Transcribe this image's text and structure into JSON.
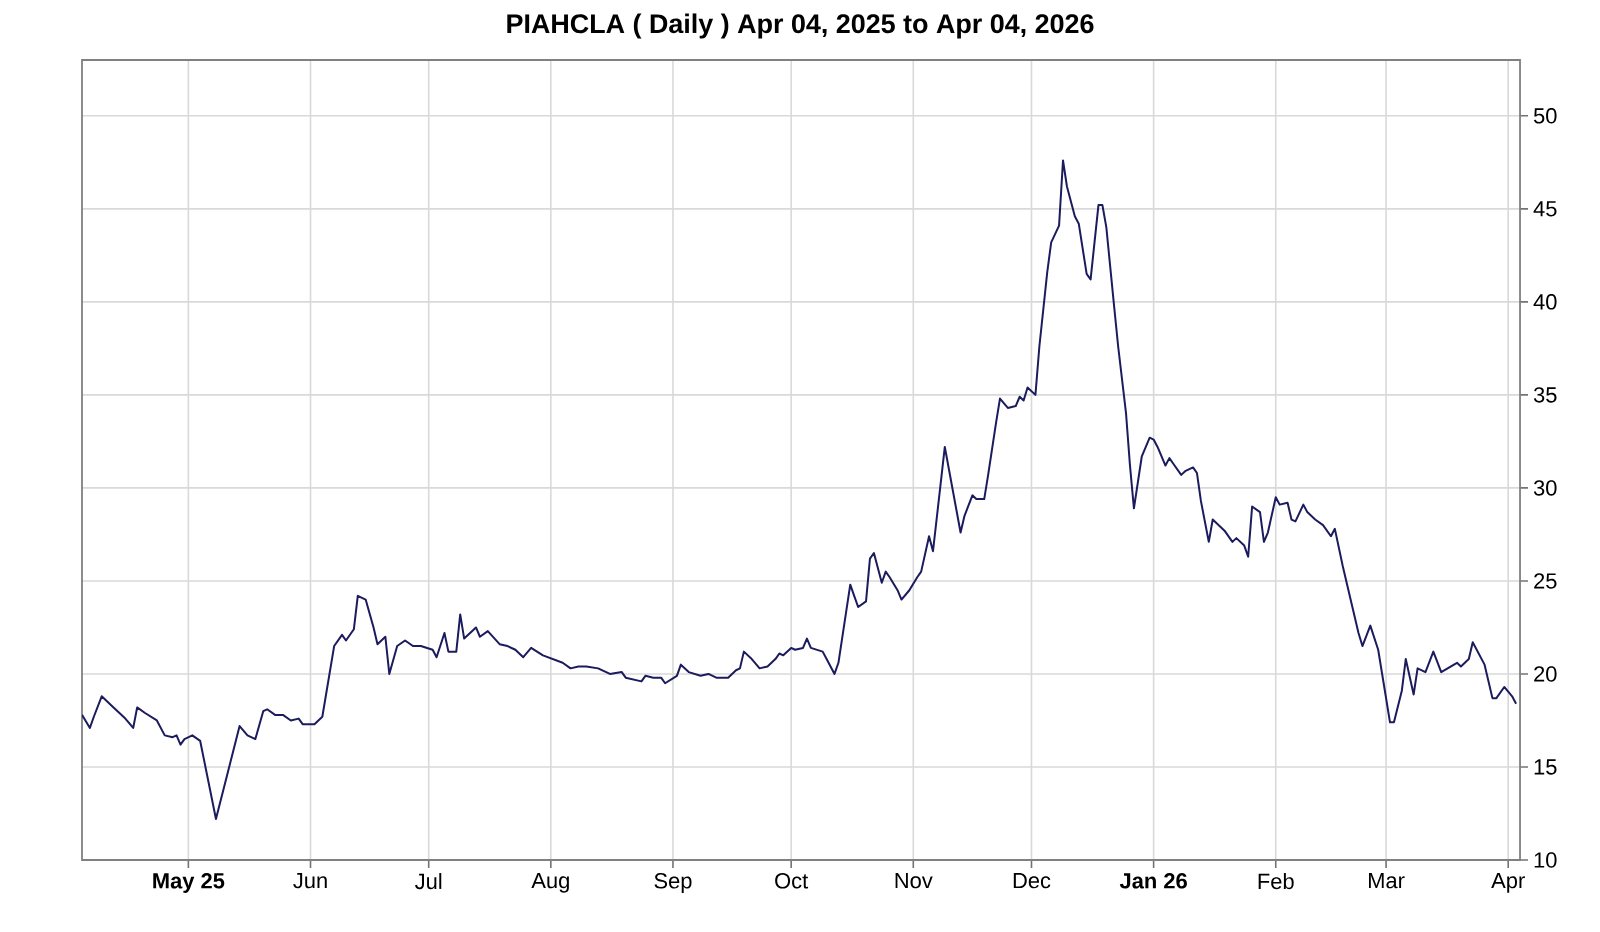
{
  "chart_data": {
    "type": "line",
    "title": "PIAHCLA ( Daily ) Apr 04, 2025 to Apr 04, 2026",
    "xlim": [
      "2025-04-04",
      "2026-04-04"
    ],
    "ylim": [
      10,
      53
    ],
    "xticks": [
      {
        "value": "2025-05-01",
        "label": "May 25"
      },
      {
        "value": "2025-06-01",
        "label": "Jun"
      },
      {
        "value": "2025-07-01",
        "label": "Jul"
      },
      {
        "value": "2025-08-01",
        "label": "Aug"
      },
      {
        "value": "2025-09-01",
        "label": "Sep"
      },
      {
        "value": "2025-10-01",
        "label": "Oct"
      },
      {
        "value": "2025-11-01",
        "label": "Nov"
      },
      {
        "value": "2025-12-01",
        "label": "Dec"
      },
      {
        "value": "2026-01-01",
        "label": "Jan 26"
      },
      {
        "value": "2026-02-01",
        "label": "Feb"
      },
      {
        "value": "2026-03-01",
        "label": "Mar"
      },
      {
        "value": "2026-04-01",
        "label": "Apr"
      }
    ],
    "yticks": [
      10,
      15,
      20,
      25,
      30,
      35,
      40,
      45,
      50
    ],
    "grid": true,
    "color": "#1b1b5e",
    "x": [
      "2025-04-04",
      "2025-04-06",
      "2025-04-07",
      "2025-04-09",
      "2025-04-10",
      "2025-04-12",
      "2025-04-15",
      "2025-04-17",
      "2025-04-18",
      "2025-04-20",
      "2025-04-23",
      "2025-04-25",
      "2025-04-27",
      "2025-04-28",
      "2025-04-29",
      "2025-04-30",
      "2025-05-02",
      "2025-05-04",
      "2025-05-08",
      "2025-05-14",
      "2025-05-16",
      "2025-05-18",
      "2025-05-20",
      "2025-05-21",
      "2025-05-23",
      "2025-05-25",
      "2025-05-27",
      "2025-05-29",
      "2025-05-30",
      "2025-06-02",
      "2025-06-04",
      "2025-06-07",
      "2025-06-09",
      "2025-06-10",
      "2025-06-12",
      "2025-06-13",
      "2025-06-15",
      "2025-06-17",
      "2025-06-18",
      "2025-06-20",
      "2025-06-21",
      "2025-06-23",
      "2025-06-25",
      "2025-06-27",
      "2025-06-29",
      "2025-07-02",
      "2025-07-03",
      "2025-07-05",
      "2025-07-06",
      "2025-07-08",
      "2025-07-09",
      "2025-07-10",
      "2025-07-13",
      "2025-07-14",
      "2025-07-16",
      "2025-07-19",
      "2025-07-21",
      "2025-07-23",
      "2025-07-25",
      "2025-07-27",
      "2025-07-30",
      "2025-08-04",
      "2025-08-06",
      "2025-08-08",
      "2025-08-10",
      "2025-08-13",
      "2025-08-16",
      "2025-08-19",
      "2025-08-20",
      "2025-08-24",
      "2025-08-25",
      "2025-08-27",
      "2025-08-29",
      "2025-08-30",
      "2025-09-02",
      "2025-09-03",
      "2025-09-05",
      "2025-09-08",
      "2025-09-10",
      "2025-09-12",
      "2025-09-15",
      "2025-09-17",
      "2025-09-18",
      "2025-09-19",
      "2025-09-21",
      "2025-09-23",
      "2025-09-25",
      "2025-09-27",
      "2025-09-28",
      "2025-09-29",
      "2025-10-01",
      "2025-10-02",
      "2025-10-04",
      "2025-10-05",
      "2025-10-06",
      "2025-10-09",
      "2025-10-10",
      "2025-10-12",
      "2025-10-13",
      "2025-10-16",
      "2025-10-17",
      "2025-10-18",
      "2025-10-20",
      "2025-10-21",
      "2025-10-22",
      "2025-10-24",
      "2025-10-25",
      "2025-10-26",
      "2025-10-28",
      "2025-10-29",
      "2025-10-31",
      "2025-11-02",
      "2025-11-03",
      "2025-11-05",
      "2025-11-06",
      "2025-11-09",
      "2025-11-13",
      "2025-11-14",
      "2025-11-16",
      "2025-11-17",
      "2025-11-19",
      "2025-11-20",
      "2025-11-22",
      "2025-11-23",
      "2025-11-25",
      "2025-11-27",
      "2025-11-28",
      "2025-11-29",
      "2025-11-30",
      "2025-12-02",
      "2025-12-03",
      "2025-12-05",
      "2025-12-06",
      "2025-12-08",
      "2025-12-09",
      "2025-12-10",
      "2025-12-12",
      "2025-12-13",
      "2025-12-15",
      "2025-12-16",
      "2025-12-18",
      "2025-12-19",
      "2025-12-20",
      "2025-12-22",
      "2025-12-23",
      "2025-12-25",
      "2025-12-26",
      "2025-12-27",
      "2025-12-29",
      "2025-12-31",
      "2026-01-01",
      "2026-01-02",
      "2026-01-04",
      "2026-01-05",
      "2026-01-06",
      "2026-01-08",
      "2026-01-09",
      "2026-01-11",
      "2026-01-12",
      "2026-01-13",
      "2026-01-15",
      "2026-01-16",
      "2026-01-18",
      "2026-01-19",
      "2026-01-21",
      "2026-01-22",
      "2026-01-24",
      "2026-01-25",
      "2026-01-26",
      "2026-01-28",
      "2026-01-29",
      "2026-01-30",
      "2026-02-01",
      "2026-02-02",
      "2026-02-04",
      "2026-02-05",
      "2026-02-06",
      "2026-02-08",
      "2026-02-09",
      "2026-02-11",
      "2026-02-13",
      "2026-02-15",
      "2026-02-16",
      "2026-02-18",
      "2026-02-20",
      "2026-02-22",
      "2026-02-23",
      "2026-02-25",
      "2026-02-27",
      "2026-03-02",
      "2026-03-03",
      "2026-03-05",
      "2026-03-06",
      "2026-03-08",
      "2026-03-09",
      "2026-03-11",
      "2026-03-13",
      "2026-03-15",
      "2026-03-19",
      "2026-03-20",
      "2026-03-22",
      "2026-03-23",
      "2026-03-26",
      "2026-03-28",
      "2026-03-29",
      "2026-03-31",
      "2026-04-02",
      "2026-04-03"
    ],
    "values": [
      17.8,
      17.1,
      17.7,
      18.8,
      18.6,
      18.2,
      17.6,
      17.1,
      18.2,
      17.9,
      17.5,
      16.7,
      16.6,
      16.7,
      16.2,
      16.5,
      16.7,
      16.4,
      12.2,
      17.2,
      16.7,
      16.5,
      18.0,
      18.1,
      17.8,
      17.8,
      17.5,
      17.6,
      17.3,
      17.3,
      17.7,
      21.5,
      22.1,
      21.8,
      22.4,
      24.2,
      24.0,
      22.5,
      21.6,
      22.0,
      20.0,
      21.5,
      21.8,
      21.5,
      21.5,
      21.3,
      20.9,
      22.2,
      21.2,
      21.2,
      23.2,
      21.9,
      22.5,
      22.0,
      22.3,
      21.6,
      21.5,
      21.3,
      20.9,
      21.4,
      21.0,
      20.6,
      20.3,
      20.4,
      20.4,
      20.3,
      20.0,
      20.1,
      19.8,
      19.6,
      19.9,
      19.8,
      19.8,
      19.5,
      19.9,
      20.5,
      20.1,
      19.9,
      20.0,
      19.8,
      19.8,
      20.2,
      20.3,
      21.2,
      20.8,
      20.3,
      20.4,
      20.8,
      21.1,
      21.0,
      21.4,
      21.3,
      21.4,
      21.9,
      21.4,
      21.2,
      20.8,
      20.0,
      20.6,
      24.8,
      24.2,
      23.6,
      23.9,
      26.2,
      26.5,
      24.9,
      25.5,
      25.2,
      24.5,
      24.0,
      24.5,
      25.2,
      25.5,
      27.4,
      26.6,
      32.2,
      27.6,
      28.5,
      29.6,
      29.4,
      29.4,
      30.7,
      33.5,
      34.8,
      34.3,
      34.4,
      34.9,
      34.7,
      35.4,
      35.0,
      37.6,
      41.6,
      43.2,
      44.1,
      47.6,
      46.2,
      44.6,
      44.2,
      41.5,
      41.2,
      45.2,
      45.2,
      44.0,
      39.7,
      37.6,
      34.0,
      31.2,
      28.9,
      31.7,
      32.7,
      32.6,
      32.2,
      31.2,
      31.6,
      31.3,
      30.7,
      30.9,
      31.1,
      30.8,
      29.3,
      27.1,
      28.3,
      27.9,
      27.7,
      27.1,
      27.3,
      26.9,
      26.3,
      29.0,
      28.7,
      27.1,
      27.6,
      29.5,
      29.1,
      29.2,
      28.3,
      28.2,
      29.1,
      28.7,
      28.3,
      28.0,
      27.4,
      27.8,
      25.8,
      24.0,
      22.2,
      21.5,
      22.6,
      21.3,
      17.4,
      17.4,
      19.1,
      20.8,
      18.9,
      20.3,
      20.1,
      21.2,
      20.1,
      20.6,
      20.4,
      20.8,
      21.7,
      20.5,
      18.7,
      18.7,
      19.3,
      18.8,
      18.4
    ]
  }
}
